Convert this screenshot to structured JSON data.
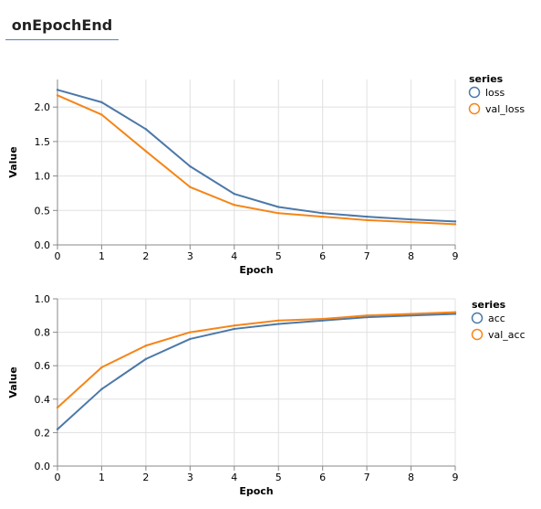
{
  "tab": {
    "title": "onEpochEnd"
  },
  "chart_data": [
    {
      "type": "line",
      "xlabel": "Epoch",
      "ylabel": "Value",
      "x": [
        0,
        1,
        2,
        3,
        4,
        5,
        6,
        7,
        8,
        9
      ],
      "xlim": [
        0,
        9
      ],
      "ylim": [
        0,
        2.4
      ],
      "yticks": [
        "0.0",
        "0.5",
        "1.0",
        "1.5",
        "2.0"
      ],
      "xticks": [
        "0",
        "1",
        "2",
        "3",
        "4",
        "5",
        "6",
        "7",
        "8",
        "9"
      ],
      "grid": true,
      "legend": {
        "title": "series",
        "placement": "right"
      },
      "series": [
        {
          "name": "loss",
          "color": "#4c78a8",
          "values": [
            2.25,
            2.07,
            1.68,
            1.14,
            0.74,
            0.55,
            0.46,
            0.41,
            0.37,
            0.34
          ]
        },
        {
          "name": "val_loss",
          "color": "#f58518",
          "values": [
            2.17,
            1.89,
            1.36,
            0.84,
            0.58,
            0.46,
            0.41,
            0.36,
            0.33,
            0.3
          ]
        }
      ]
    },
    {
      "type": "line",
      "xlabel": "Epoch",
      "ylabel": "Value",
      "x": [
        0,
        1,
        2,
        3,
        4,
        5,
        6,
        7,
        8,
        9
      ],
      "xlim": [
        0,
        9
      ],
      "ylim": [
        0,
        1.0
      ],
      "yticks": [
        "0.0",
        "0.2",
        "0.4",
        "0.6",
        "0.8",
        "1.0"
      ],
      "xticks": [
        "0",
        "1",
        "2",
        "3",
        "4",
        "5",
        "6",
        "7",
        "8",
        "9"
      ],
      "grid": true,
      "legend": {
        "title": "series",
        "placement": "right"
      },
      "series": [
        {
          "name": "acc",
          "color": "#4c78a8",
          "values": [
            0.22,
            0.46,
            0.64,
            0.76,
            0.82,
            0.85,
            0.87,
            0.89,
            0.9,
            0.91
          ]
        },
        {
          "name": "val_acc",
          "color": "#f58518",
          "values": [
            0.35,
            0.59,
            0.72,
            0.8,
            0.84,
            0.87,
            0.88,
            0.9,
            0.91,
            0.92
          ]
        }
      ]
    }
  ]
}
